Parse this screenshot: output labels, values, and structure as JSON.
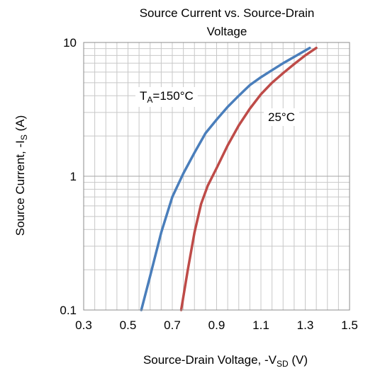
{
  "chart_data": {
    "type": "line",
    "title": "Source Current vs. Source-Drain Voltage",
    "title_lines": [
      "Source Current vs. Source-Drain",
      "Voltage"
    ],
    "xlabel": {
      "main": "Source-Drain Voltage, -V",
      "sub": "SD",
      "tail": " (V)"
    },
    "ylabel": {
      "main": "Source Current, -I",
      "sub": "S",
      "tail": " (A)"
    },
    "x_ticks": [
      "0.3",
      "0.5",
      "0.7",
      "0.9",
      "1.1",
      "1.3",
      "1.5"
    ],
    "y_ticks": [
      "0.1",
      "1",
      "10"
    ],
    "xlim": [
      0.3,
      1.5
    ],
    "ylim": [
      0.1,
      10
    ],
    "y_scale": "log",
    "grid": true,
    "series": [
      {
        "name": "T_A=150°C",
        "label_main": "T",
        "label_sub": "A",
        "label_tail": "=150°C",
        "color": "#4a7ebb",
        "x": [
          0.56,
          0.6,
          0.65,
          0.7,
          0.75,
          0.8,
          0.85,
          0.9,
          0.95,
          1.0,
          1.05,
          1.1,
          1.15,
          1.2,
          1.25,
          1.3,
          1.32
        ],
        "y": [
          0.1,
          0.18,
          0.38,
          0.7,
          1.05,
          1.5,
          2.1,
          2.65,
          3.3,
          4.0,
          4.8,
          5.5,
          6.2,
          7.0,
          7.8,
          8.7,
          9.1
        ]
      },
      {
        "name": "25°C",
        "label_main": "25°C",
        "color": "#be4b48",
        "x": [
          0.74,
          0.77,
          0.8,
          0.83,
          0.86,
          0.9,
          0.95,
          1.0,
          1.05,
          1.1,
          1.15,
          1.2,
          1.25,
          1.3,
          1.35
        ],
        "y": [
          0.1,
          0.2,
          0.38,
          0.62,
          0.85,
          1.15,
          1.7,
          2.4,
          3.2,
          4.1,
          5.0,
          5.9,
          6.9,
          8.0,
          9.1
        ]
      }
    ]
  }
}
